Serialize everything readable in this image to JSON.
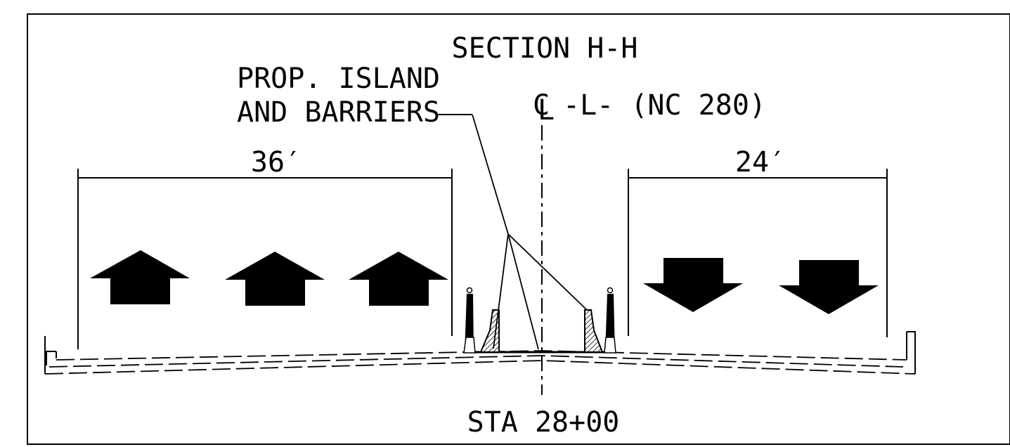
{
  "section_title": "SECTION H-H",
  "callout": {
    "line1": "PROP. ISLAND",
    "line2": "AND BARRIERS"
  },
  "centerline": {
    "symbol_c": "C",
    "symbol_l": "L",
    "text": "-L- (NC 280)"
  },
  "dimensions": {
    "left_width": "36′",
    "right_width": "24′"
  },
  "station": "STA 28+00",
  "colors": {
    "ink": "#000000",
    "paper": "#ffffff"
  }
}
